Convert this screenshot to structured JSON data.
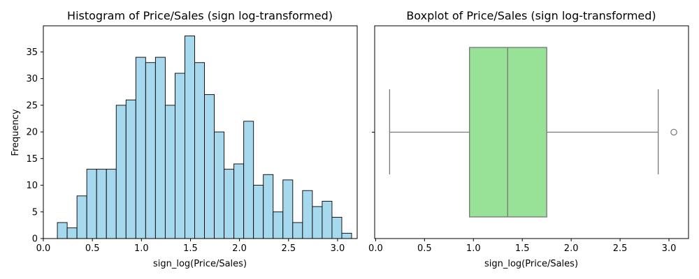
{
  "chart_data": [
    {
      "type": "bar",
      "subtype": "histogram",
      "title": "Histogram of Price/Sales (sign log-transformed)",
      "xlabel": "sign_log(Price/Sales)",
      "ylabel": "Frequency",
      "xlim": [
        0.0,
        3.2
      ],
      "ylim": [
        0,
        39.9
      ],
      "xticks": [
        0.0,
        0.5,
        1.0,
        1.5,
        2.0,
        2.5,
        3.0
      ],
      "xtick_labels": [
        "0.0",
        "0.5",
        "1.0",
        "1.5",
        "2.0",
        "2.5",
        "3.0"
      ],
      "yticks": [
        0,
        5,
        10,
        15,
        20,
        25,
        30,
        35
      ],
      "ytick_labels": [
        "0",
        "5",
        "10",
        "15",
        "20",
        "25",
        "30",
        "35"
      ],
      "bins": {
        "start": 0.143,
        "width": 0.1,
        "counts": [
          3,
          2,
          8,
          13,
          13,
          13,
          25,
          26,
          34,
          33,
          34,
          25,
          31,
          38,
          33,
          27,
          20,
          13,
          14,
          22,
          10,
          12,
          5,
          11,
          3,
          9,
          6,
          7,
          4,
          1
        ]
      },
      "colors": {
        "fill": "#a6d8ee",
        "edge": "#000000"
      },
      "grid": false
    },
    {
      "type": "boxplot",
      "title": "Boxplot of Price/Sales (sign log-transformed)",
      "xlabel": "sign_log(Price/Sales)",
      "ylabel": "",
      "xlim": [
        -0.01,
        3.2
      ],
      "xticks": [
        0.0,
        0.5,
        1.0,
        1.5,
        2.0,
        2.5,
        3.0
      ],
      "xtick_labels": [
        "0.0",
        "0.5",
        "1.0",
        "1.5",
        "2.0",
        "2.5",
        "3.0"
      ],
      "stats": {
        "whisker_low": 0.143,
        "q1": 0.96,
        "median": 1.35,
        "q3": 1.75,
        "whisker_high": 2.89,
        "outliers": [
          3.05
        ]
      },
      "colors": {
        "box": "#98e298",
        "line": "#777777"
      },
      "grid": false
    }
  ]
}
